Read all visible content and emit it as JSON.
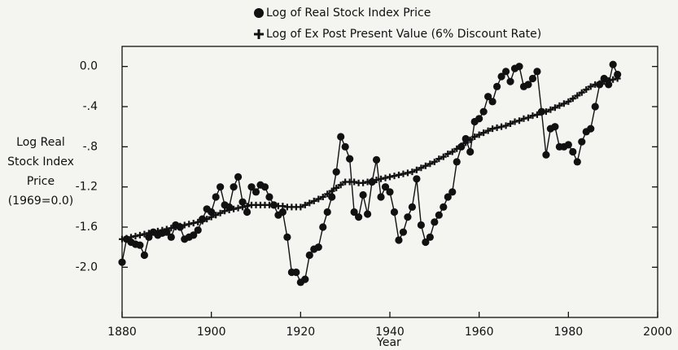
{
  "chart_data": {
    "type": "line",
    "ylabel": [
      "Log Real",
      "Stock Index",
      "Price",
      "(1969=0.0)"
    ],
    "xlabel": "Year",
    "legend": "top",
    "x": [
      1880,
      1881,
      1882,
      1883,
      1884,
      1885,
      1886,
      1887,
      1888,
      1889,
      1890,
      1891,
      1892,
      1893,
      1894,
      1895,
      1896,
      1897,
      1898,
      1899,
      1900,
      1901,
      1902,
      1903,
      1904,
      1905,
      1906,
      1907,
      1908,
      1909,
      1910,
      1911,
      1912,
      1913,
      1914,
      1915,
      1916,
      1917,
      1918,
      1919,
      1920,
      1921,
      1922,
      1923,
      1924,
      1925,
      1926,
      1927,
      1928,
      1929,
      1930,
      1931,
      1932,
      1933,
      1934,
      1935,
      1936,
      1937,
      1938,
      1939,
      1940,
      1941,
      1942,
      1943,
      1944,
      1945,
      1946,
      1947,
      1948,
      1949,
      1950,
      1951,
      1952,
      1953,
      1954,
      1955,
      1956,
      1957,
      1958,
      1959,
      1960,
      1961,
      1962,
      1963,
      1964,
      1965,
      1966,
      1967,
      1968,
      1969,
      1970,
      1971,
      1972,
      1973,
      1974,
      1975,
      1976,
      1977,
      1978,
      1979,
      1980,
      1981,
      1982,
      1983,
      1984,
      1985,
      1986,
      1987,
      1988,
      1989,
      1990,
      1991
    ],
    "series": [
      {
        "name": "Log of Real Stock Index Price",
        "color": "#111111",
        "marker": "circle",
        "values": [
          -1.95,
          -1.72,
          -1.75,
          -1.77,
          -1.78,
          -1.88,
          -1.7,
          -1.65,
          -1.68,
          -1.66,
          -1.65,
          -1.7,
          -1.58,
          -1.6,
          -1.72,
          -1.7,
          -1.68,
          -1.63,
          -1.52,
          -1.42,
          -1.45,
          -1.3,
          -1.2,
          -1.38,
          -1.4,
          -1.2,
          -1.1,
          -1.35,
          -1.45,
          -1.2,
          -1.25,
          -1.18,
          -1.2,
          -1.3,
          -1.38,
          -1.48,
          -1.45,
          -1.7,
          -2.05,
          -2.05,
          -2.15,
          -2.12,
          -1.88,
          -1.82,
          -1.8,
          -1.6,
          -1.45,
          -1.3,
          -1.05,
          -0.7,
          -0.8,
          -0.92,
          -1.45,
          -1.5,
          -1.28,
          -1.47,
          -1.15,
          -0.93,
          -1.3,
          -1.2,
          -1.25,
          -1.45,
          -1.73,
          -1.65,
          -1.5,
          -1.4,
          -1.12,
          -1.58,
          -1.75,
          -1.7,
          -1.55,
          -1.48,
          -1.4,
          -1.3,
          -1.25,
          -0.95,
          -0.8,
          -0.72,
          -0.85,
          -0.55,
          -0.52,
          -0.45,
          -0.3,
          -0.35,
          -0.2,
          -0.1,
          -0.05,
          -0.15,
          -0.02,
          0.0,
          -0.2,
          -0.18,
          -0.12,
          -0.05,
          -0.45,
          -0.88,
          -0.62,
          -0.6,
          -0.8,
          -0.8,
          -0.78,
          -0.85,
          -0.95,
          -0.75,
          -0.65,
          -0.62,
          -0.4,
          -0.18,
          -0.12,
          -0.18,
          0.02,
          -0.08
        ]
      },
      {
        "name": "Log of Ex Post Present Value (6% Discount Rate)",
        "color": "#111111",
        "marker": "plus",
        "values": [
          -1.72,
          -1.71,
          -1.7,
          -1.69,
          -1.68,
          -1.67,
          -1.66,
          -1.65,
          -1.64,
          -1.63,
          -1.62,
          -1.61,
          -1.6,
          -1.59,
          -1.58,
          -1.57,
          -1.56,
          -1.55,
          -1.54,
          -1.52,
          -1.5,
          -1.48,
          -1.46,
          -1.44,
          -1.43,
          -1.42,
          -1.41,
          -1.4,
          -1.39,
          -1.38,
          -1.38,
          -1.38,
          -1.38,
          -1.38,
          -1.38,
          -1.39,
          -1.39,
          -1.4,
          -1.4,
          -1.4,
          -1.4,
          -1.38,
          -1.36,
          -1.34,
          -1.32,
          -1.3,
          -1.27,
          -1.24,
          -1.21,
          -1.18,
          -1.15,
          -1.15,
          -1.15,
          -1.16,
          -1.16,
          -1.15,
          -1.14,
          -1.13,
          -1.12,
          -1.11,
          -1.1,
          -1.09,
          -1.08,
          -1.07,
          -1.06,
          -1.05,
          -1.03,
          -1.01,
          -0.99,
          -0.97,
          -0.95,
          -0.92,
          -0.9,
          -0.87,
          -0.85,
          -0.82,
          -0.79,
          -0.76,
          -0.73,
          -0.7,
          -0.68,
          -0.66,
          -0.64,
          -0.62,
          -0.61,
          -0.6,
          -0.59,
          -0.57,
          -0.55,
          -0.54,
          -0.52,
          -0.51,
          -0.49,
          -0.48,
          -0.46,
          -0.45,
          -0.43,
          -0.41,
          -0.39,
          -0.37,
          -0.35,
          -0.32,
          -0.29,
          -0.26,
          -0.23,
          -0.2,
          -0.18,
          -0.17,
          -0.15,
          -0.14,
          -0.13,
          -0.12
        ]
      }
    ],
    "xlim": [
      1880,
      2000
    ],
    "xticks": [
      1880,
      1900,
      1920,
      1940,
      1960,
      1980,
      2000
    ],
    "ylim": [
      -2.5,
      0.2
    ],
    "yticks": [
      {
        "value": 0.0,
        "label": "0.0"
      },
      {
        "value": -0.4,
        "label": "-.4"
      },
      {
        "value": -0.8,
        "label": "-.8"
      },
      {
        "value": -1.2,
        "label": "-1.2"
      },
      {
        "value": -1.6,
        "label": "-1.6"
      },
      {
        "value": -2.0,
        "label": "-2.0"
      }
    ]
  }
}
